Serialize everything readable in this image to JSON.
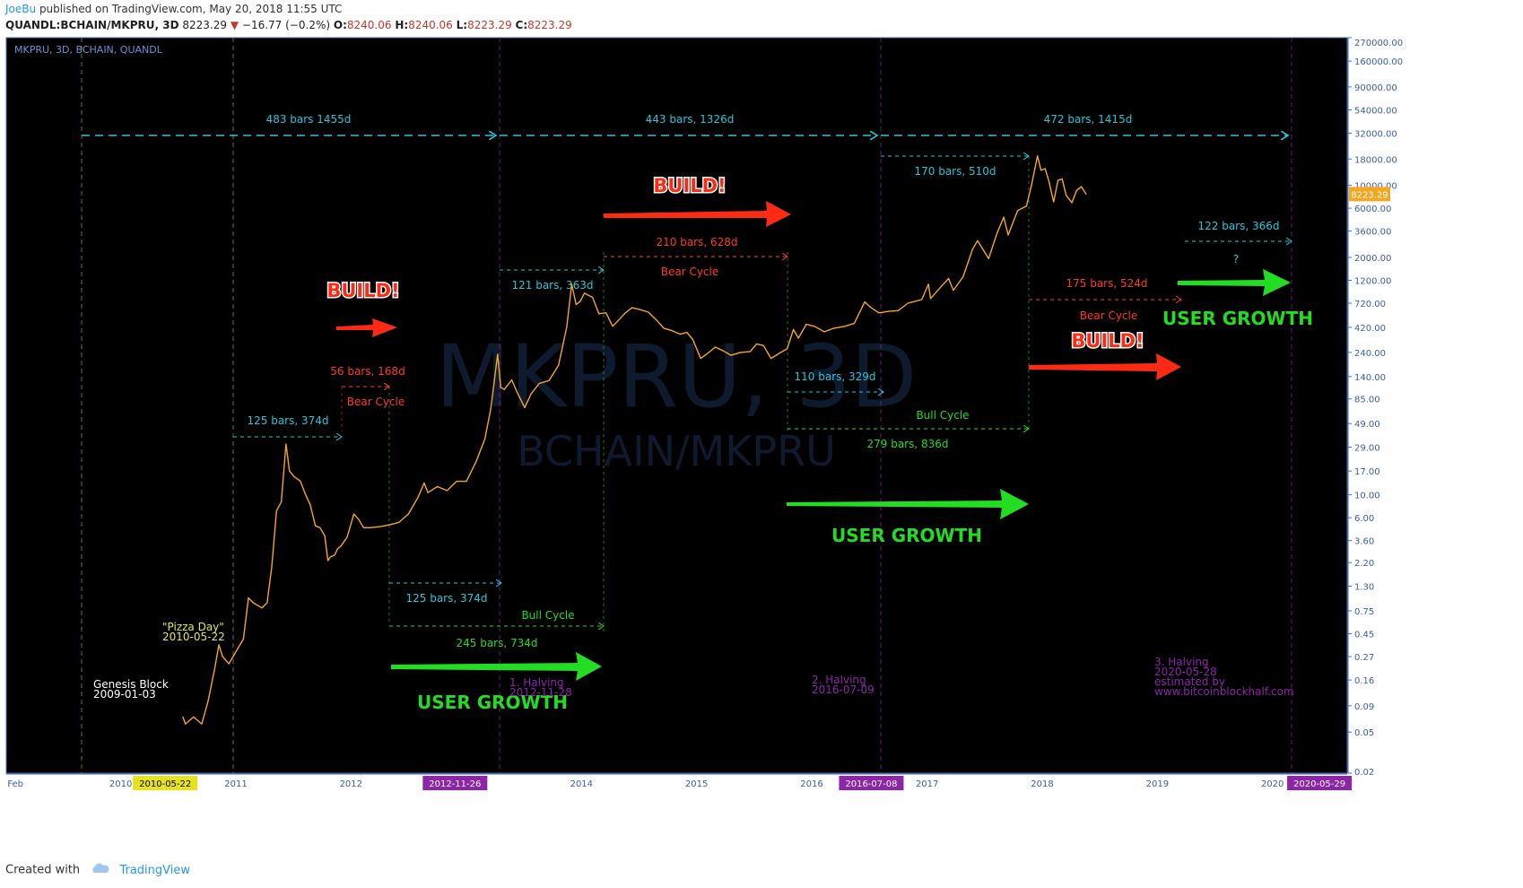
{
  "header": {
    "user": "JoeBu",
    "published": "published on TradingView.com, May 20, 2018 11:55 UTC",
    "symbol": "QUANDL:BCHAIN/MKPRU, 3D",
    "last": "8223.29",
    "change": "−16.77 (−0.2%)",
    "open_label": "O:",
    "open": "8240.06",
    "high_label": "H:",
    "high": "8240.06",
    "low_label": "L:",
    "low": "8223.29",
    "close_label": "C:",
    "close": "8223.29"
  },
  "pane_label": "MKPRU, 3D, BCHAIN, QUANDL",
  "watermark": {
    "line1": "MKPRU, 3D",
    "line2": "BCHAIN/MKPRU"
  },
  "footer": {
    "created_with": "Created with",
    "brand": "TradingView"
  },
  "colors": {
    "background": "#000000",
    "price": "#f5a623",
    "cyan": "#26c6da",
    "red": "#ff3b1f",
    "green": "#22dd22",
    "purple": "#8e24aa",
    "yellow": "#c9c93a",
    "grid_border": "#4a6fb0"
  },
  "chart_data": {
    "type": "line",
    "scale": "log",
    "ylim": [
      0.02,
      270000
    ],
    "xlim": [
      "2009-01-03",
      "2020-08-25"
    ],
    "y_ticks": [
      "270000.00",
      "160000.00",
      "90000.00",
      "54000.00",
      "32000.00",
      "18000.00",
      "10000.00",
      "6000.00",
      "3600.00",
      "2000.00",
      "1200.00",
      "720.00",
      "420.00",
      "240.00",
      "140.00",
      "85.00",
      "49.00",
      "29.00",
      "17.00",
      "10.00",
      "6.00",
      "3.60",
      "2.20",
      "1.30",
      "0.75",
      "0.45",
      "0.27",
      "0.16",
      "0.09",
      "0.05",
      "0.02"
    ],
    "x_ticks": [
      {
        "label": "Feb",
        "date": "2009-02-01"
      },
      {
        "label": "2010",
        "date": "2010-01-01"
      },
      {
        "label": "2010-05-22",
        "date": "2010-05-22",
        "highlight": "yellow"
      },
      {
        "label": "2011",
        "date": "2011-01-01"
      },
      {
        "label": "2012",
        "date": "2012-01-01"
      },
      {
        "label": "2012-11-26",
        "date": "2012-11-26",
        "highlight": "purple"
      },
      {
        "label": "2014",
        "date": "2014-01-01"
      },
      {
        "label": "2015",
        "date": "2015-01-01"
      },
      {
        "label": "2016",
        "date": "2016-01-01"
      },
      {
        "label": "2016-07-08",
        "date": "2016-07-08",
        "highlight": "purple"
      },
      {
        "label": "2017",
        "date": "2017-01-01"
      },
      {
        "label": "2018",
        "date": "2018-01-01"
      },
      {
        "label": "2019",
        "date": "2019-01-01"
      },
      {
        "label": "2020",
        "date": "2020-01-01"
      },
      {
        "label": "2020-05-29",
        "date": "2020-05-29",
        "highlight": "purple"
      }
    ],
    "last_price_label": "8223.29",
    "series": [
      {
        "points": [
          [
            "2010-07-17",
            0.07
          ],
          [
            "2010-07-25",
            0.06
          ],
          [
            "2010-08-20",
            0.07
          ],
          [
            "2010-09-15",
            0.06
          ],
          [
            "2010-10-05",
            0.1
          ],
          [
            "2010-10-25",
            0.2
          ],
          [
            "2010-11-08",
            0.35
          ],
          [
            "2010-11-20",
            0.27
          ],
          [
            "2010-12-10",
            0.23
          ],
          [
            "2011-01-01",
            0.3
          ],
          [
            "2011-01-25",
            0.4
          ],
          [
            "2011-02-10",
            1.0
          ],
          [
            "2011-02-25",
            0.9
          ],
          [
            "2011-03-10",
            0.85
          ],
          [
            "2011-03-25",
            0.8
          ],
          [
            "2011-04-10",
            0.9
          ],
          [
            "2011-04-25",
            2.0
          ],
          [
            "2011-05-10",
            7.0
          ],
          [
            "2011-05-25",
            8.5
          ],
          [
            "2011-06-09",
            31.0
          ],
          [
            "2011-06-20",
            17.0
          ],
          [
            "2011-07-05",
            15.0
          ],
          [
            "2011-07-25",
            13.5
          ],
          [
            "2011-08-10",
            10.0
          ],
          [
            "2011-08-25",
            8.0
          ],
          [
            "2011-09-10",
            5.0
          ],
          [
            "2011-09-25",
            4.8
          ],
          [
            "2011-10-10",
            4.0
          ],
          [
            "2011-10-20",
            2.3
          ],
          [
            "2011-10-28",
            2.5
          ],
          [
            "2011-11-10",
            2.6
          ],
          [
            "2011-11-20",
            3.0
          ],
          [
            "2011-12-01",
            3.2
          ],
          [
            "2011-12-20",
            3.9
          ],
          [
            "2012-01-10",
            6.5
          ],
          [
            "2012-01-25",
            5.8
          ],
          [
            "2012-02-10",
            4.8
          ],
          [
            "2012-03-01",
            4.8
          ],
          [
            "2012-04-01",
            4.9
          ],
          [
            "2012-05-01",
            5.1
          ],
          [
            "2012-06-01",
            5.4
          ],
          [
            "2012-07-01",
            6.5
          ],
          [
            "2012-08-01",
            9.5
          ],
          [
            "2012-08-20",
            13.0
          ],
          [
            "2012-09-01",
            10.5
          ],
          [
            "2012-10-01",
            12.0
          ],
          [
            "2012-11-01",
            11.0
          ],
          [
            "2012-12-01",
            13.5
          ],
          [
            "2013-01-01",
            13.5
          ],
          [
            "2013-02-01",
            21.0
          ],
          [
            "2013-03-01",
            35.0
          ],
          [
            "2013-03-20",
            70.0
          ],
          [
            "2013-04-10",
            230.0
          ],
          [
            "2013-04-20",
            110.0
          ],
          [
            "2013-05-01",
            105.0
          ],
          [
            "2013-05-25",
            130.0
          ],
          [
            "2013-06-10",
            100.0
          ],
          [
            "2013-07-05",
            70.0
          ],
          [
            "2013-07-25",
            95.0
          ],
          [
            "2013-08-20",
            120.0
          ],
          [
            "2013-09-20",
            128.0
          ],
          [
            "2013-10-20",
            180.0
          ],
          [
            "2013-11-15",
            420.0
          ],
          [
            "2013-12-01",
            1100.0
          ],
          [
            "2013-12-15",
            700.0
          ],
          [
            "2013-12-28",
            750.0
          ],
          [
            "2014-01-10",
            900.0
          ],
          [
            "2014-02-05",
            820.0
          ],
          [
            "2014-02-25",
            570.0
          ],
          [
            "2014-03-20",
            580.0
          ],
          [
            "2014-04-10",
            430.0
          ],
          [
            "2014-04-25",
            480.0
          ],
          [
            "2014-05-20",
            580.0
          ],
          [
            "2014-06-10",
            650.0
          ],
          [
            "2014-07-01",
            630.0
          ],
          [
            "2014-08-01",
            590.0
          ],
          [
            "2014-08-25",
            500.0
          ],
          [
            "2014-09-20",
            410.0
          ],
          [
            "2014-10-15",
            390.0
          ],
          [
            "2014-11-10",
            360.0
          ],
          [
            "2014-12-01",
            375.0
          ],
          [
            "2014-12-20",
            320.0
          ],
          [
            "2015-01-14",
            210.0
          ],
          [
            "2015-02-01",
            230.0
          ],
          [
            "2015-03-01",
            270.0
          ],
          [
            "2015-03-25",
            250.0
          ],
          [
            "2015-04-20",
            225.0
          ],
          [
            "2015-05-20",
            240.0
          ],
          [
            "2015-06-20",
            245.0
          ],
          [
            "2015-07-10",
            290.0
          ],
          [
            "2015-08-01",
            280.0
          ],
          [
            "2015-08-25",
            210.0
          ],
          [
            "2015-09-20",
            235.0
          ],
          [
            "2015-10-15",
            260.0
          ],
          [
            "2015-11-04",
            400.0
          ],
          [
            "2015-11-20",
            330.0
          ],
          [
            "2015-12-15",
            450.0
          ],
          [
            "2016-01-10",
            430.0
          ],
          [
            "2016-02-10",
            380.0
          ],
          [
            "2016-03-10",
            410.0
          ],
          [
            "2016-04-15",
            430.0
          ],
          [
            "2016-05-15",
            460.0
          ],
          [
            "2016-06-17",
            740.0
          ],
          [
            "2016-07-05",
            660.0
          ],
          [
            "2016-08-01",
            580.0
          ],
          [
            "2016-09-01",
            600.0
          ],
          [
            "2016-10-01",
            610.0
          ],
          [
            "2016-11-01",
            720.0
          ],
          [
            "2016-12-15",
            780.0
          ],
          [
            "2017-01-05",
            1100.0
          ],
          [
            "2017-01-12",
            800.0
          ],
          [
            "2017-02-15",
            1050.0
          ],
          [
            "2017-03-10",
            1250.0
          ],
          [
            "2017-03-25",
            960.0
          ],
          [
            "2017-04-25",
            1300.0
          ],
          [
            "2017-05-25",
            2400.0
          ],
          [
            "2017-06-10",
            2900.0
          ],
          [
            "2017-07-15",
            1950.0
          ],
          [
            "2017-08-10",
            3400.0
          ],
          [
            "2017-09-01",
            4900.0
          ],
          [
            "2017-09-15",
            3300.0
          ],
          [
            "2017-10-15",
            5700.0
          ],
          [
            "2017-11-12",
            6300.0
          ],
          [
            "2017-11-28",
            10000.0
          ],
          [
            "2017-12-17",
            19300.0
          ],
          [
            "2017-12-28",
            14000.0
          ],
          [
            "2018-01-10",
            14500.0
          ],
          [
            "2018-01-22",
            11000.0
          ],
          [
            "2018-02-06",
            6900.0
          ],
          [
            "2018-02-20",
            11200.0
          ],
          [
            "2018-03-05",
            11500.0
          ],
          [
            "2018-03-18",
            8000.0
          ],
          [
            "2018-04-05",
            6800.0
          ],
          [
            "2018-04-20",
            8900.0
          ],
          [
            "2018-05-05",
            9700.0
          ],
          [
            "2018-05-20",
            8223.29
          ]
        ]
      }
    ],
    "annotations": {
      "cycle_labels": [
        {
          "text": "483 bars  1455d",
          "color": "cyan"
        },
        {
          "text": "443 bars, 1326d",
          "color": "cyan"
        },
        {
          "text": "472 bars, 1415d",
          "color": "cyan"
        },
        {
          "text": "170 bars, 510d",
          "color": "cyan"
        },
        {
          "text": "121 bars, 363d",
          "color": "cyan"
        },
        {
          "text": "210 bars, 628d",
          "color": "red"
        },
        {
          "text": "Bear Cycle",
          "color": "red"
        },
        {
          "text": "122 bars, 366d",
          "color": "cyan"
        },
        {
          "text": "?",
          "color": "cyan"
        },
        {
          "text": "175 bars, 524d",
          "color": "red"
        },
        {
          "text": "Bear Cycle",
          "color": "red"
        },
        {
          "text": "56 bars, 168d",
          "color": "red"
        },
        {
          "text": "Bear Cycle",
          "color": "red"
        },
        {
          "text": "125 bars, 374d",
          "color": "cyan"
        },
        {
          "text": "110 bars, 329d",
          "color": "cyan"
        },
        {
          "text": "Bull Cycle",
          "color": "green"
        },
        {
          "text": "279 bars, 836d",
          "color": "green"
        },
        {
          "text": "125 bars, 374d",
          "color": "cyan"
        },
        {
          "text": "Bull Cycle",
          "color": "green"
        },
        {
          "text": "245 bars, 734d",
          "color": "green"
        }
      ],
      "build_labels": [
        "BUILD!",
        "BUILD!",
        "BUILD!"
      ],
      "user_growth_labels": [
        "USER GROWTH",
        "USER GROWTH",
        "USER GROWTH"
      ],
      "events": {
        "genesis": [
          "Genesis Block",
          "2009-01-03"
        ],
        "pizza": [
          "\"Pizza Day\"",
          "2010-05-22"
        ],
        "halving1": [
          "1. Halving",
          "2012-11-28"
        ],
        "halving2": [
          "2. Halving",
          "2016-07-09"
        ],
        "halving3": [
          "3. Halving",
          "2020-05-28",
          "estimated by",
          "www.bitcoinblockhalf.com"
        ]
      }
    }
  }
}
